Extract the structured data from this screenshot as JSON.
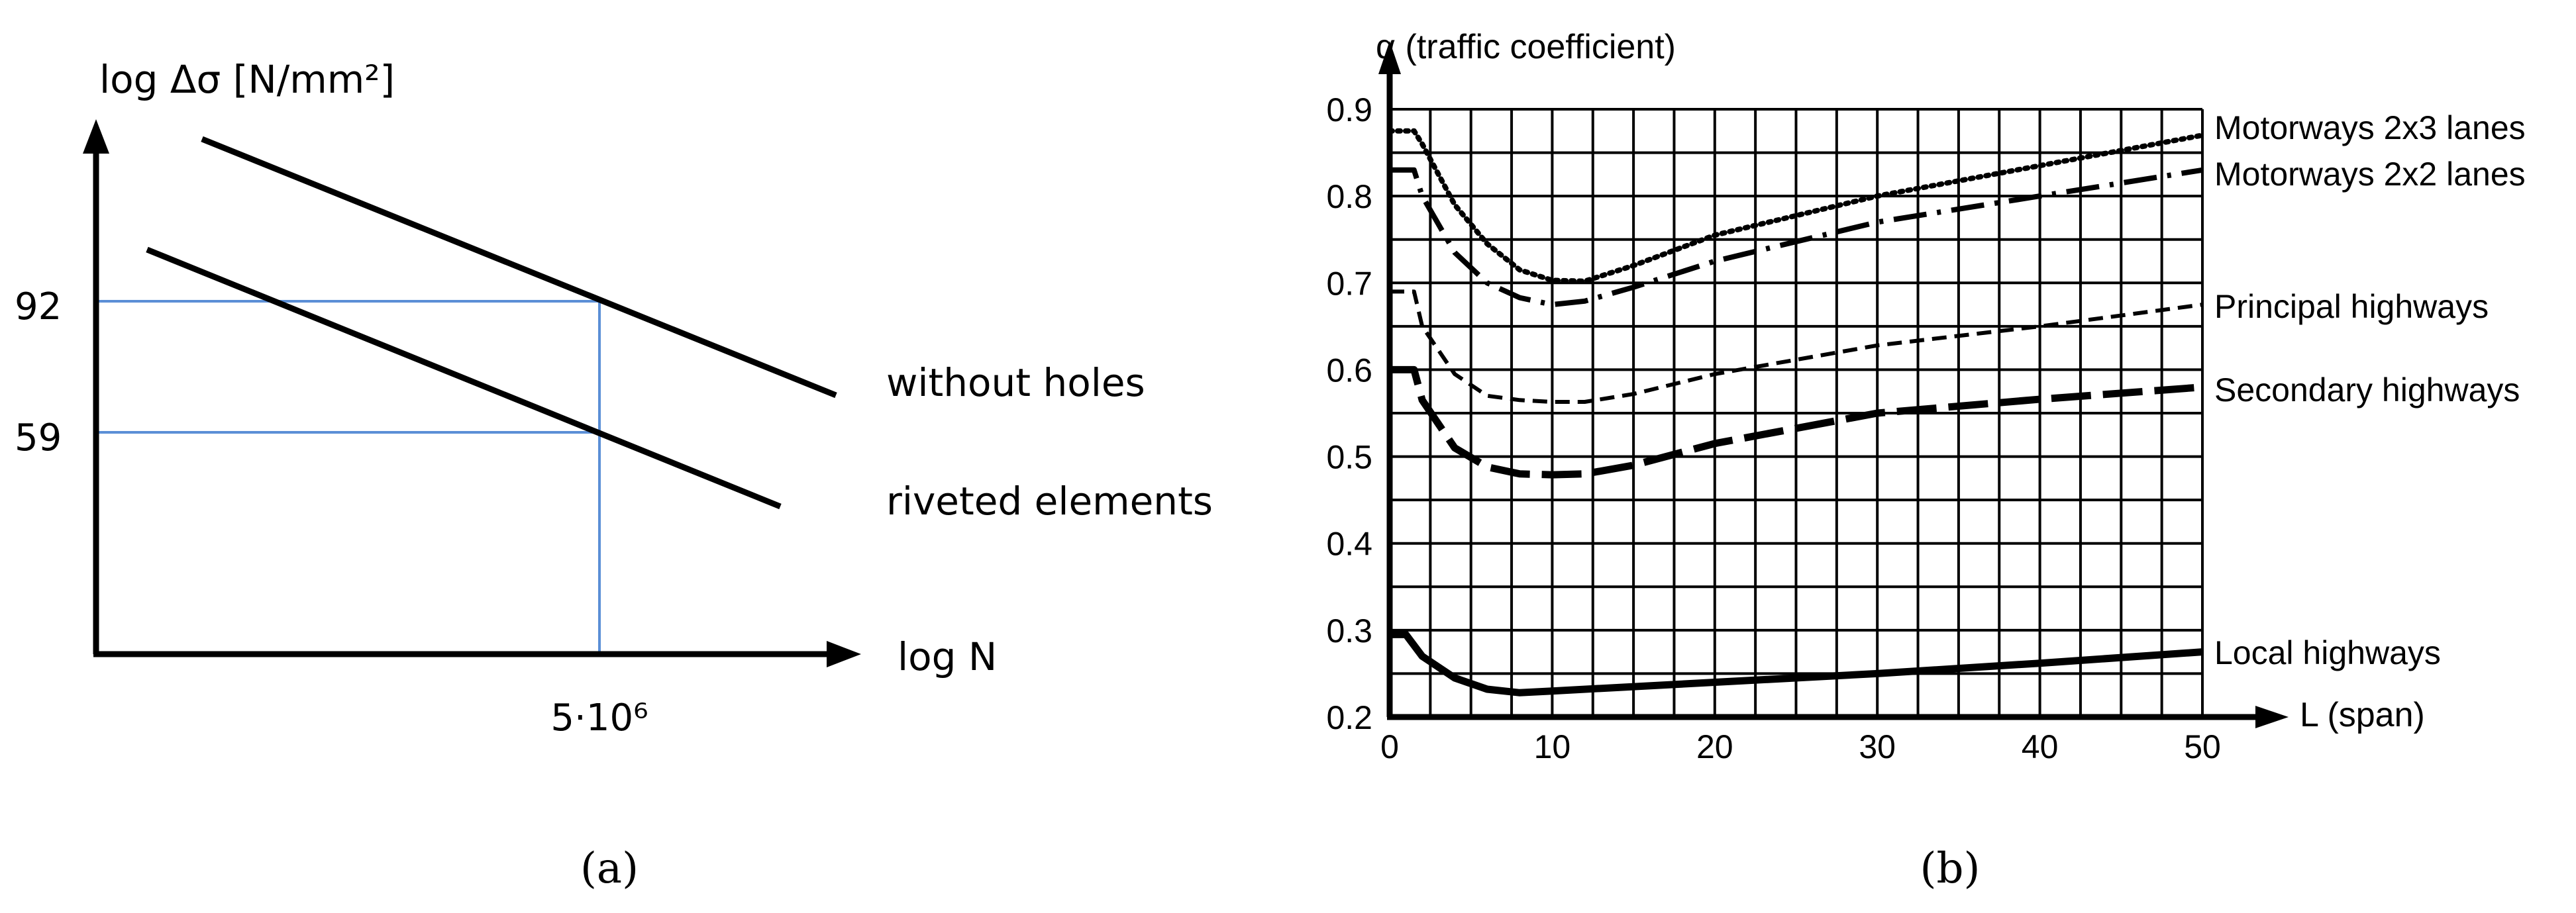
{
  "chart_data": [
    {
      "type": "line",
      "ylabel": "log Δσ [N/mm²]",
      "xlabel": "log N",
      "y_ticks": [
        "92",
        "59"
      ],
      "x_ticks": [
        "5·10⁶"
      ],
      "reference_colors": {
        "guides": "#5b8fd6"
      },
      "series": [
        {
          "name": "without holes",
          "value_at_5e6": 92
        },
        {
          "name": "riveted elements",
          "value_at_5e6": 59
        }
      ],
      "panel_label": "(a)",
      "grid": false
    },
    {
      "type": "line",
      "ylabel": "α (traffic coefficient)",
      "xlabel": "L (span)",
      "xlim": [
        0,
        50
      ],
      "ylim": [
        0.2,
        0.9
      ],
      "x_ticks": [
        "0",
        "10",
        "20",
        "30",
        "40",
        "50"
      ],
      "y_ticks": [
        "0.2",
        "0.3",
        "0.4",
        "0.5",
        "0.6",
        "0.7",
        "0.8",
        "0.9"
      ],
      "grid": true,
      "legend_placement": "right",
      "panel_label": "(b)",
      "series": [
        {
          "name": "Motorways 2x3 lanes",
          "style": "dotted",
          "x": [
            0,
            1.5,
            2,
            4,
            6,
            8,
            10,
            12,
            15,
            20,
            30,
            40,
            50
          ],
          "y": [
            0.875,
            0.875,
            0.86,
            0.79,
            0.745,
            0.715,
            0.703,
            0.702,
            0.72,
            0.755,
            0.8,
            0.835,
            0.87
          ]
        },
        {
          "name": "Motorways 2x2 lanes",
          "style": "dash-dot",
          "x": [
            0,
            1.5,
            2,
            4,
            6,
            8,
            10,
            12,
            15,
            20,
            30,
            40,
            50
          ],
          "y": [
            0.83,
            0.83,
            0.8,
            0.735,
            0.7,
            0.683,
            0.675,
            0.679,
            0.695,
            0.725,
            0.77,
            0.8,
            0.83
          ]
        },
        {
          "name": "Principal highways",
          "style": "dashed",
          "x": [
            0,
            1.5,
            2,
            4,
            6,
            8,
            10,
            12,
            15,
            20,
            30,
            40,
            50
          ],
          "y": [
            0.69,
            0.69,
            0.65,
            0.595,
            0.57,
            0.565,
            0.563,
            0.563,
            0.572,
            0.595,
            0.628,
            0.65,
            0.675
          ]
        },
        {
          "name": "Secondary highways",
          "style": "long-dash",
          "x": [
            0,
            1.5,
            2,
            4,
            6,
            8,
            10,
            12,
            15,
            20,
            30,
            40,
            50
          ],
          "y": [
            0.6,
            0.6,
            0.565,
            0.51,
            0.488,
            0.48,
            0.479,
            0.48,
            0.49,
            0.515,
            0.55,
            0.566,
            0.58
          ]
        },
        {
          "name": "Local highways",
          "style": "solid",
          "x": [
            0,
            1,
            2,
            4,
            6,
            8,
            10,
            20,
            30,
            40,
            50
          ],
          "y": [
            0.295,
            0.295,
            0.27,
            0.245,
            0.232,
            0.228,
            0.23,
            0.24,
            0.25,
            0.262,
            0.275
          ]
        }
      ]
    }
  ]
}
